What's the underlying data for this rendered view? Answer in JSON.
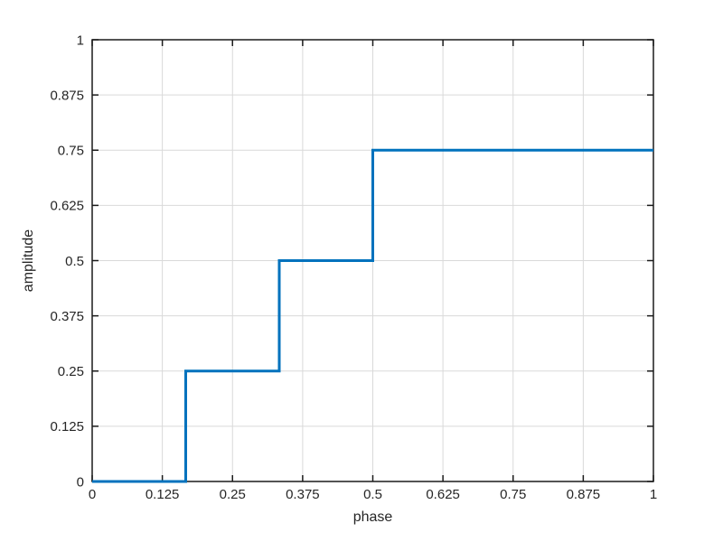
{
  "figure": {
    "background": "#ffffff"
  },
  "chart_data": {
    "type": "line",
    "subtype": "step",
    "title": "",
    "xlabel": "phase",
    "ylabel": "amplitude",
    "xlim": [
      0,
      1
    ],
    "ylim": [
      0,
      1
    ],
    "xticks": [
      0,
      0.125,
      0.25,
      0.375,
      0.5,
      0.625,
      0.75,
      0.875,
      1
    ],
    "yticks": [
      0,
      0.125,
      0.25,
      0.375,
      0.5,
      0.625,
      0.75,
      0.875,
      1
    ],
    "xtick_labels": [
      "0",
      "0.125",
      "0.25",
      "0.375",
      "0.5",
      "0.625",
      "0.75",
      "0.875",
      "1"
    ],
    "ytick_labels": [
      "0",
      "0.125",
      "0.25",
      "0.375",
      "0.5",
      "0.625",
      "0.75",
      "0.875",
      "1"
    ],
    "grid": true,
    "legend": null,
    "series": [
      {
        "name": "step-series",
        "vertices_x": [
          0,
          0.16667,
          0.16667,
          0.33333,
          0.33333,
          0.5,
          0.5,
          1
        ],
        "vertices_y": [
          0,
          0,
          0.25,
          0.25,
          0.5,
          0.5,
          0.75,
          0.75
        ],
        "step_x": [
          0,
          0.16667,
          0.33333,
          0.5
        ],
        "step_y": [
          0,
          0.25,
          0.5,
          0.75
        ],
        "x_end": 1
      }
    ],
    "colors": {
      "line": "#0072bd",
      "grid": "#d9d9d9",
      "axis": "#1a1a1a",
      "text": "#262626",
      "background": "#ffffff"
    },
    "line_width": 3
  }
}
